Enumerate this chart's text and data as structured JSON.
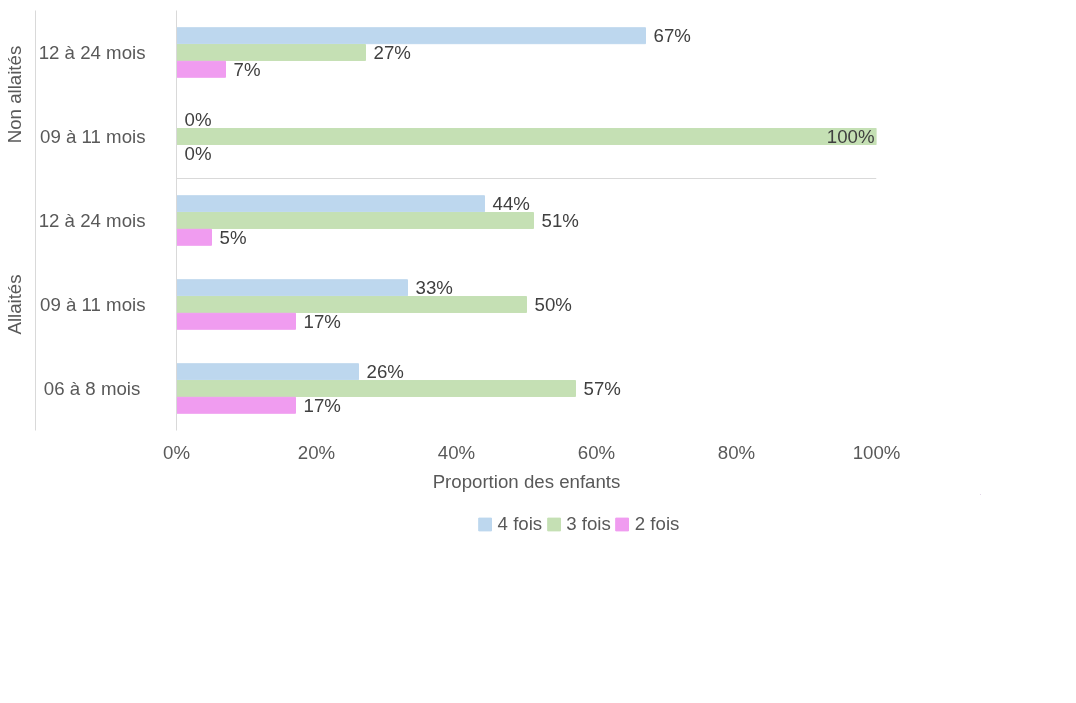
{
  "chart_data": {
    "type": "bar",
    "orientation": "horizontal",
    "xlabel": "Proportion des enfants",
    "categories": [
      "12 à 24 mois",
      "09 à 11 mois",
      "12 à 24 mois",
      "09 à 11 mois",
      "06 à  8 mois"
    ],
    "annotations": [
      "Non allaités",
      "Allaités"
    ],
    "series": [
      {
        "name": "4 fois",
        "color": "#bdd7ee",
        "values": [
          67,
          0,
          44,
          33,
          26
        ],
        "value_labels": [
          "67%",
          "0%",
          "44%",
          "33%",
          "26%"
        ]
      },
      {
        "name": "3 fois",
        "color": "#c5e0b4",
        "values": [
          27,
          100,
          51,
          50,
          57
        ],
        "value_labels": [
          "27%",
          "100%",
          "51%",
          "50%",
          "57%"
        ]
      },
      {
        "name": "2 fois",
        "color": "#f09cf0",
        "values": [
          7,
          0,
          5,
          17,
          17
        ],
        "value_labels": [
          "7%",
          "0%",
          "5%",
          "17%",
          "17%"
        ]
      }
    ],
    "xlim": [
      0,
      100
    ],
    "xticks": [
      {
        "value": 0,
        "label": "0%"
      },
      {
        "value": 20,
        "label": "20%"
      },
      {
        "value": 40,
        "label": "40%"
      },
      {
        "value": 60,
        "label": "60%"
      },
      {
        "value": 80,
        "label": "80%"
      },
      {
        "value": 100,
        "label": "100%"
      }
    ],
    "grid": false,
    "legend": "bottom"
  }
}
